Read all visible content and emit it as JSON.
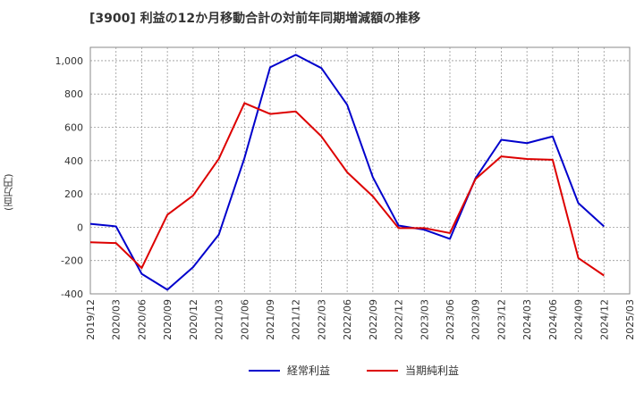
{
  "chart_data": {
    "type": "line",
    "title": "[3900]  利益の12か月移動合計の対前年同期増減額の推移",
    "ylabel": "(百万円)",
    "xlabel": "",
    "ylim": [
      -400,
      1080
    ],
    "yticks": [
      -400,
      -200,
      0,
      200,
      400,
      600,
      800,
      1000
    ],
    "ytick_labels": [
      "-400",
      "-200",
      "0",
      "200",
      "400",
      "600",
      "800",
      "1,000"
    ],
    "categories": [
      "2019/12",
      "2020/03",
      "2020/06",
      "2020/09",
      "2020/12",
      "2021/03",
      "2021/06",
      "2021/09",
      "2021/12",
      "2022/03",
      "2022/06",
      "2022/09",
      "2022/12",
      "2023/03",
      "2023/06",
      "2023/09",
      "2023/12",
      "2024/03",
      "2024/06",
      "2024/09",
      "2024/12",
      "2025/03"
    ],
    "grid": true,
    "legend_position": "bottom",
    "series": [
      {
        "name": "経常利益",
        "color": "#0000cc",
        "values": [
          20,
          5,
          -280,
          -375,
          -240,
          -45,
          415,
          960,
          1035,
          955,
          735,
          300,
          10,
          -15,
          -70,
          295,
          525,
          505,
          545,
          145,
          5,
          null
        ]
      },
      {
        "name": "当期純利益",
        "color": "#dd0000",
        "values": [
          -90,
          -95,
          -245,
          75,
          190,
          410,
          745,
          680,
          695,
          545,
          330,
          185,
          -5,
          -5,
          -35,
          290,
          425,
          410,
          405,
          -185,
          -290,
          null
        ]
      }
    ]
  }
}
